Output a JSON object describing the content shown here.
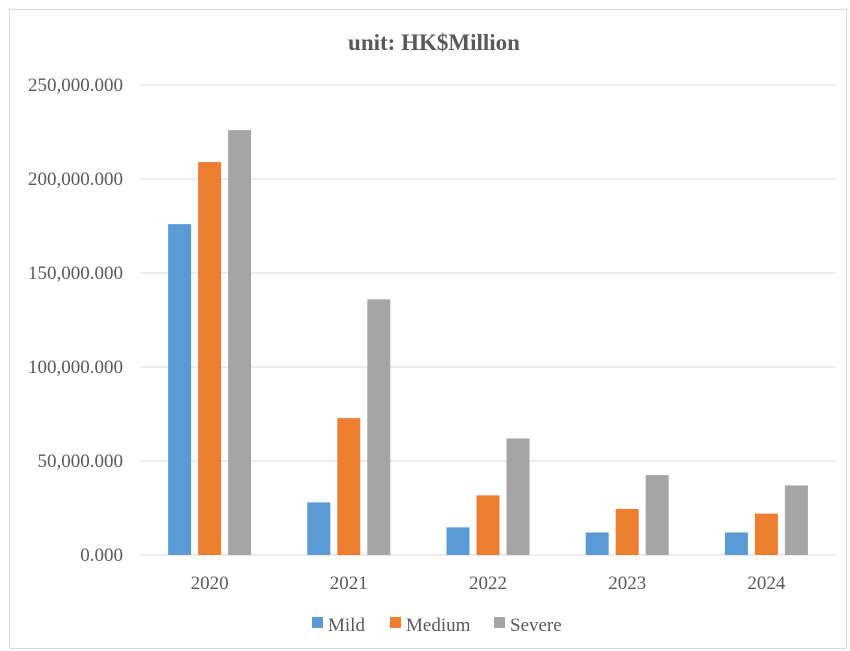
{
  "chart_data": {
    "type": "bar",
    "title": "unit:  HK$Million",
    "xlabel": "",
    "ylabel": "",
    "categories": [
      "2020",
      "2021",
      "2022",
      "2023",
      "2024"
    ],
    "series": [
      {
        "name": "Mild",
        "color": "#5b9bd5",
        "values": [
          176000,
          28000,
          14700,
          12000,
          12000
        ]
      },
      {
        "name": "Medium",
        "color": "#ed7d31",
        "values": [
          209000,
          72800,
          31700,
          24500,
          22000
        ]
      },
      {
        "name": "Severe",
        "color": "#a5a5a5",
        "values": [
          226000,
          136000,
          62000,
          42500,
          37000
        ]
      }
    ],
    "ylim": [
      0,
      250000
    ],
    "yticks": [
      0,
      50000,
      100000,
      150000,
      200000,
      250000
    ],
    "ytick_labels": [
      "0.000",
      "50,000.000",
      "100,000.000",
      "150,000.000",
      "200,000.000",
      "250,000.000"
    ],
    "grid": true,
    "legend_position": "bottom"
  }
}
